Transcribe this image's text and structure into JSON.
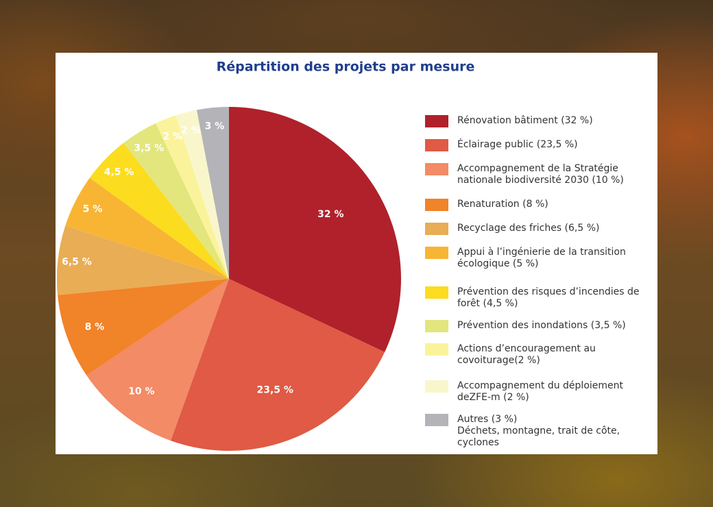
{
  "chart_data": {
    "type": "pie",
    "title": "Répartition des projets par mesure",
    "categories": [
      "Rénovation bâtiment (32 %)",
      "Éclairage public (23,5 %)",
      "Accompagnement de la Stratégie nationale biodiversité 2030 (10 %)",
      "Renaturation (8 %)",
      "Recyclage des friches (6,5 %)",
      "Appui à l’ingénierie de la transition écologique (5 %)",
      "Prévention des risques d’incendies de forêt (4,5 %)",
      "Prévention des inondations (3,5 %)",
      "Actions d’encouragement au covoiturage(2 %)",
      "Accompagnement du déploiement deZFE-m (2 %)",
      "Autres (3 %)\nDéchets, montagne, trait de côte, cyclones"
    ],
    "values": [
      32,
      23.5,
      10,
      8,
      6.5,
      5,
      4.5,
      3.5,
      2,
      2,
      3
    ],
    "value_labels": [
      "32 %",
      "23,5 %",
      "10 %",
      "8 %",
      "6,5 %",
      "5 %",
      "4,5 %",
      "3,5 %",
      "2 %",
      "2 %",
      "3 %"
    ],
    "colors": [
      "#b0212b",
      "#e05a45",
      "#f28b66",
      "#f18329",
      "#e8ad55",
      "#f8b534",
      "#fcdc1e",
      "#e3e67c",
      "#fbf39b",
      "#faf6cb",
      "#b3b3b8"
    ]
  }
}
